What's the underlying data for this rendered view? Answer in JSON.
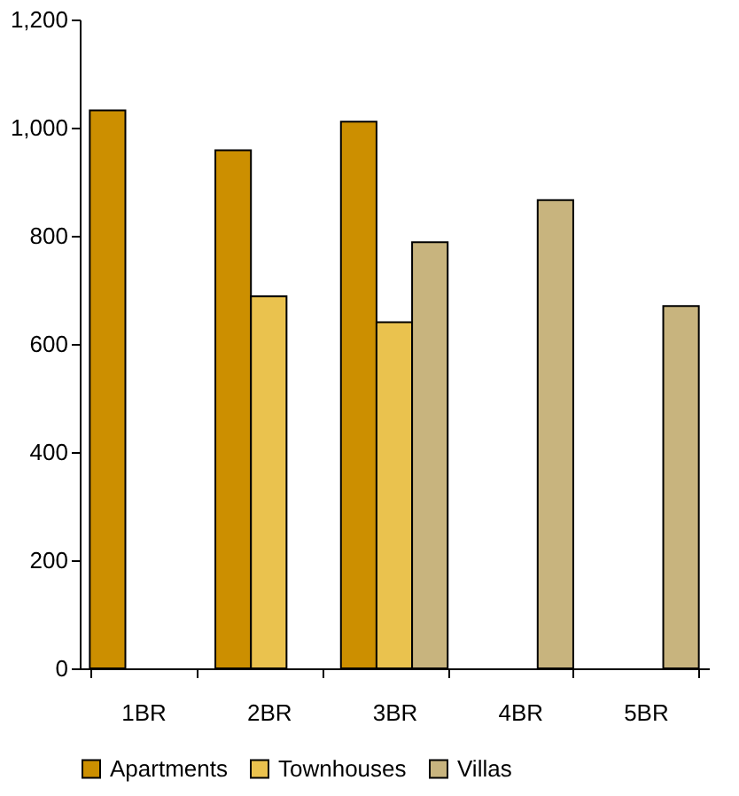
{
  "chart_data": {
    "type": "bar",
    "categories": [
      "1BR",
      "2BR",
      "3BR",
      "4BR",
      "5BR"
    ],
    "series": [
      {
        "name": "Apartments",
        "color": "#cc8f00",
        "values": [
          1032,
          958,
          1011,
          null,
          null
        ]
      },
      {
        "name": "Townhouses",
        "color": "#eac24e",
        "values": [
          null,
          688,
          640,
          null,
          null
        ]
      },
      {
        "name": "Villas",
        "color": "#c8b47e",
        "values": [
          null,
          null,
          788,
          866,
          670
        ]
      }
    ],
    "ylim": [
      0,
      1200
    ],
    "yticks": [
      0,
      200,
      400,
      600,
      800,
      {
        "value": 1000,
        "label": "1,000"
      },
      {
        "value": 1200,
        "label": "1,200"
      }
    ],
    "grid": false,
    "legend": "bottom"
  }
}
